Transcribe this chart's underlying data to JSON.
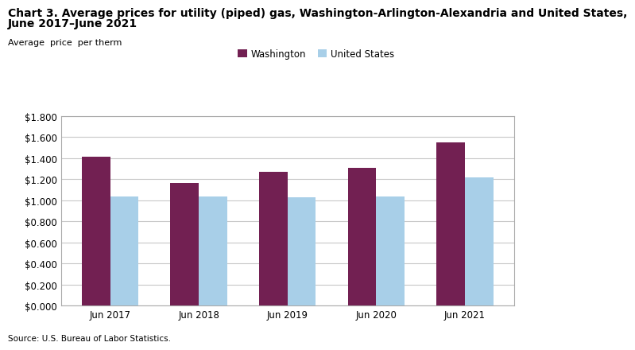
{
  "title_line1": "Chart 3. Average prices for utility (piped) gas, Washington-Arlington-Alexandria and United States,",
  "title_line2": "June 2017–June 2021",
  "ylabel": "Average  price  per therm",
  "source": "Source: U.S. Bureau of Labor Statistics.",
  "categories": [
    "Jun 2017",
    "Jun 2018",
    "Jun 2019",
    "Jun 2020",
    "Jun 2021"
  ],
  "washington_values": [
    1.415,
    1.165,
    1.27,
    1.305,
    1.55
  ],
  "us_values": [
    1.035,
    1.04,
    1.03,
    1.035,
    1.215
  ],
  "washington_color": "#722052",
  "us_color": "#a8cfe8",
  "washington_label": "Washington",
  "us_label": "United States",
  "ylim": [
    0.0,
    1.8
  ],
  "yticks": [
    0.0,
    0.2,
    0.4,
    0.6,
    0.8,
    1.0,
    1.2,
    1.4,
    1.6,
    1.8
  ],
  "bar_width": 0.32,
  "grid_color": "#c8c8c8",
  "title_fontsize": 10,
  "axis_label_fontsize": 8,
  "tick_fontsize": 8.5,
  "legend_fontsize": 8.5,
  "source_fontsize": 7.5
}
